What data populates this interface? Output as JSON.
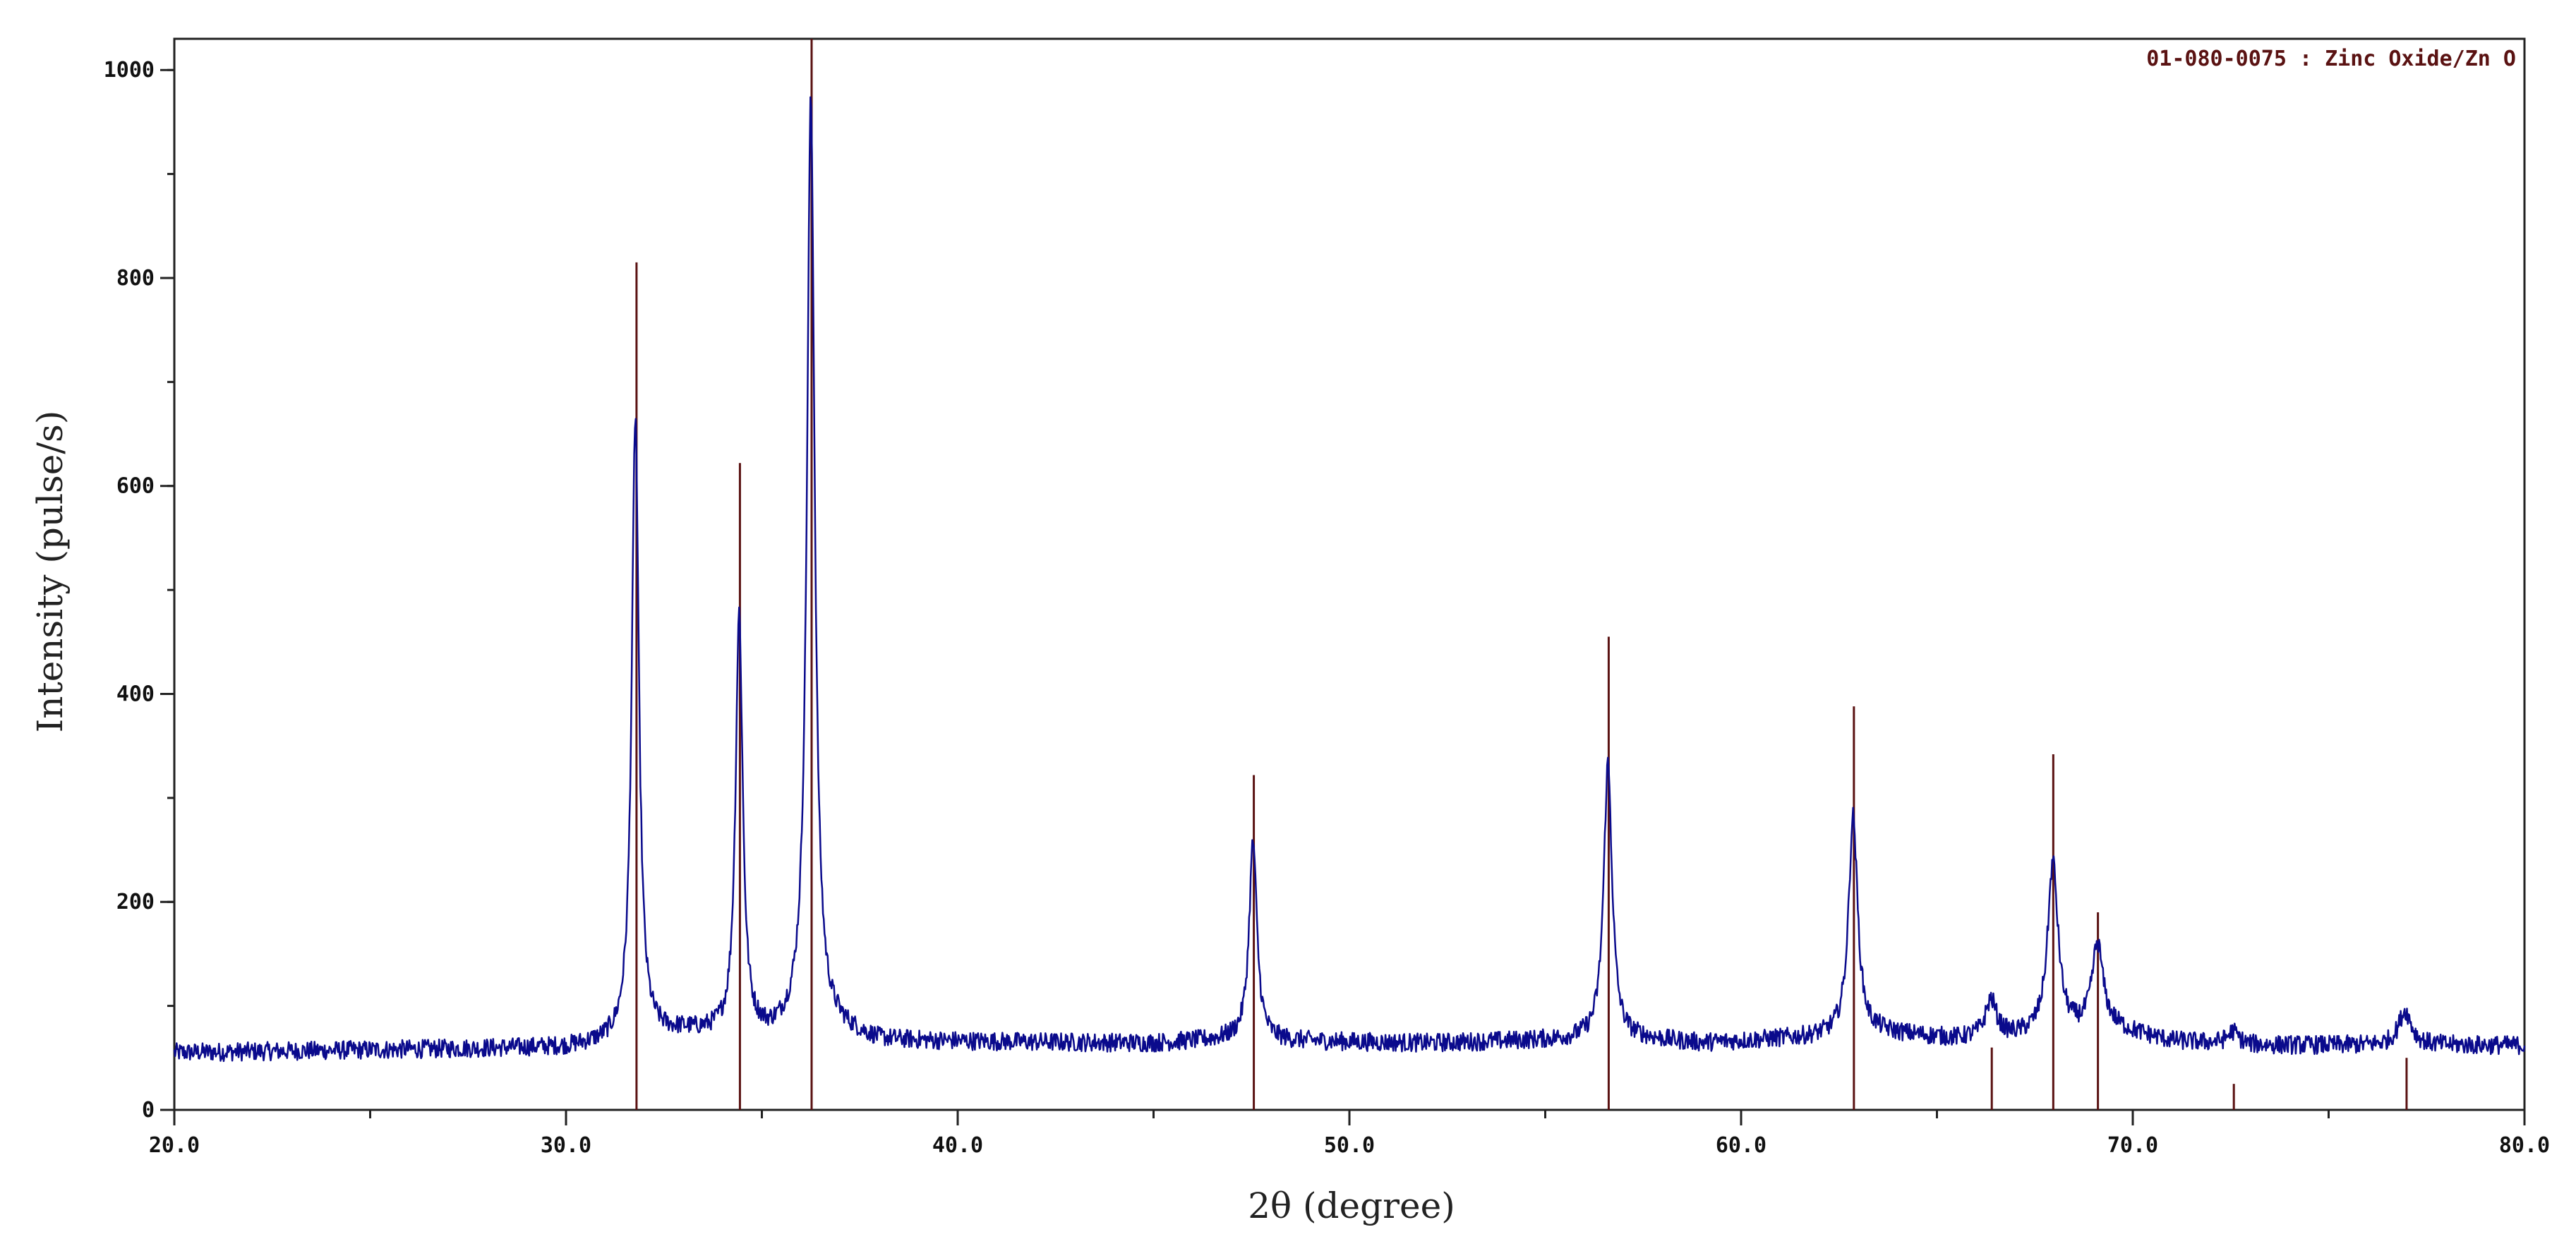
{
  "chart_data": {
    "type": "line",
    "title": "",
    "xlabel": "2θ (degree)",
    "ylabel": "Intensity (pulse/s)",
    "xlim": [
      20.0,
      80.0
    ],
    "ylim": [
      0,
      1030
    ],
    "x_major_ticks": [
      20.0,
      30.0,
      40.0,
      50.0,
      60.0,
      70.0,
      80.0
    ],
    "x_tick_labels": [
      "20.0",
      "30.0",
      "40.0",
      "50.0",
      "60.0",
      "70.0",
      "80.0"
    ],
    "x_minor_step": 5.0,
    "y_major_ticks": [
      0,
      200,
      400,
      600,
      800,
      1000
    ],
    "y_tick_labels": [
      "0",
      "200",
      "400",
      "600",
      "800",
      "1000"
    ],
    "y_minor_step": 100,
    "grid": false,
    "series": [
      {
        "color": "#0a0a8c",
        "baseline": [
          [
            20,
            55
          ],
          [
            30,
            60
          ],
          [
            31,
            64
          ],
          [
            33,
            74
          ],
          [
            34,
            72
          ],
          [
            35.2,
            70
          ],
          [
            36,
            78
          ],
          [
            37,
            75
          ],
          [
            38,
            66
          ],
          [
            45,
            64
          ],
          [
            47,
            68
          ],
          [
            48.5,
            66
          ],
          [
            52,
            64
          ],
          [
            56,
            68
          ],
          [
            57.5,
            68
          ],
          [
            59,
            64
          ],
          [
            62,
            70
          ],
          [
            63.5,
            74
          ],
          [
            65.5,
            68
          ],
          [
            67,
            70
          ],
          [
            69.5,
            78
          ],
          [
            71,
            66
          ],
          [
            73,
            62
          ],
          [
            80,
            62
          ]
        ],
        "peaks": [
          {
            "x": 31.77,
            "y": 665,
            "fwhm": 0.22
          },
          {
            "x": 34.42,
            "y": 475,
            "fwhm": 0.22
          },
          {
            "x": 36.25,
            "y": 970,
            "fwhm": 0.24
          },
          {
            "x": 47.54,
            "y": 258,
            "fwhm": 0.24
          },
          {
            "x": 56.6,
            "y": 333,
            "fwhm": 0.26
          },
          {
            "x": 62.86,
            "y": 282,
            "fwhm": 0.28
          },
          {
            "x": 66.38,
            "y": 105,
            "fwhm": 0.34
          },
          {
            "x": 67.96,
            "y": 237,
            "fwhm": 0.32
          },
          {
            "x": 69.1,
            "y": 158,
            "fwhm": 0.34
          },
          {
            "x": 72.56,
            "y": 75,
            "fwhm": 0.35
          },
          {
            "x": 76.95,
            "y": 95,
            "fwhm": 0.4
          }
        ]
      }
    ],
    "reference_pattern": {
      "label": "01-080-0075 : Zinc Oxide/Zn O",
      "color": "#5a1212",
      "lines": [
        {
          "x": 31.8,
          "y": 815
        },
        {
          "x": 34.44,
          "y": 622
        },
        {
          "x": 36.27,
          "y": 1030
        },
        {
          "x": 47.56,
          "y": 322
        },
        {
          "x": 56.62,
          "y": 455
        },
        {
          "x": 62.88,
          "y": 388
        },
        {
          "x": 66.4,
          "y": 60
        },
        {
          "x": 67.97,
          "y": 342
        },
        {
          "x": 69.11,
          "y": 190
        },
        {
          "x": 72.58,
          "y": 25
        },
        {
          "x": 76.99,
          "y": 50
        }
      ]
    }
  }
}
